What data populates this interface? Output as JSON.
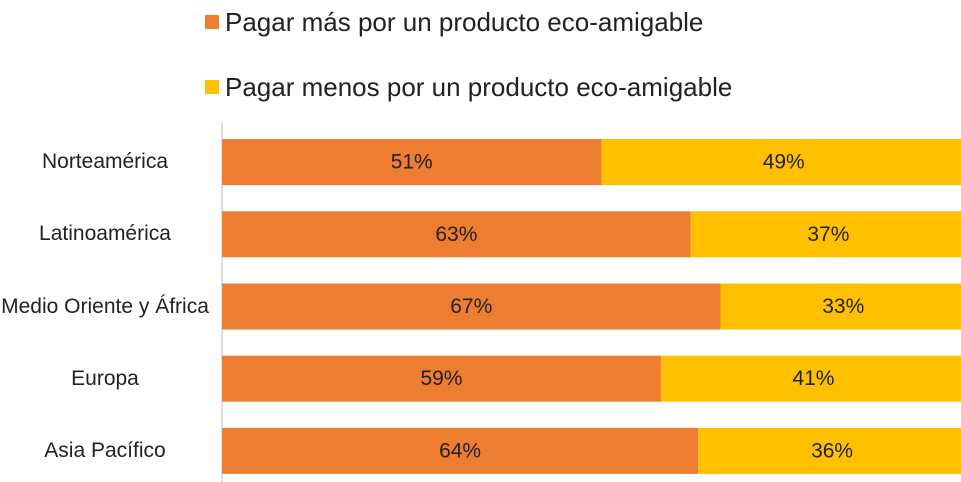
{
  "chart_data": {
    "type": "stacked-bar-horizontal",
    "categories": [
      "Norteamérica",
      "Latinoamérica",
      "Medio Oriente y África",
      "Europa",
      "Asia Pacífico"
    ],
    "series": [
      {
        "name": "Pagar más por un producto eco-amigable",
        "color": "#ED7D31",
        "values": [
          51,
          63,
          67,
          59,
          64
        ],
        "value_labels": [
          "51%",
          "63%",
          "67%",
          "59%",
          "64%"
        ]
      },
      {
        "name": "Pagar menos por un producto eco-amigable",
        "color": "#FFC000",
        "values": [
          49,
          37,
          33,
          41,
          36
        ],
        "value_labels": [
          "49%",
          "37%",
          "33%",
          "41%",
          "36%"
        ]
      }
    ]
  }
}
